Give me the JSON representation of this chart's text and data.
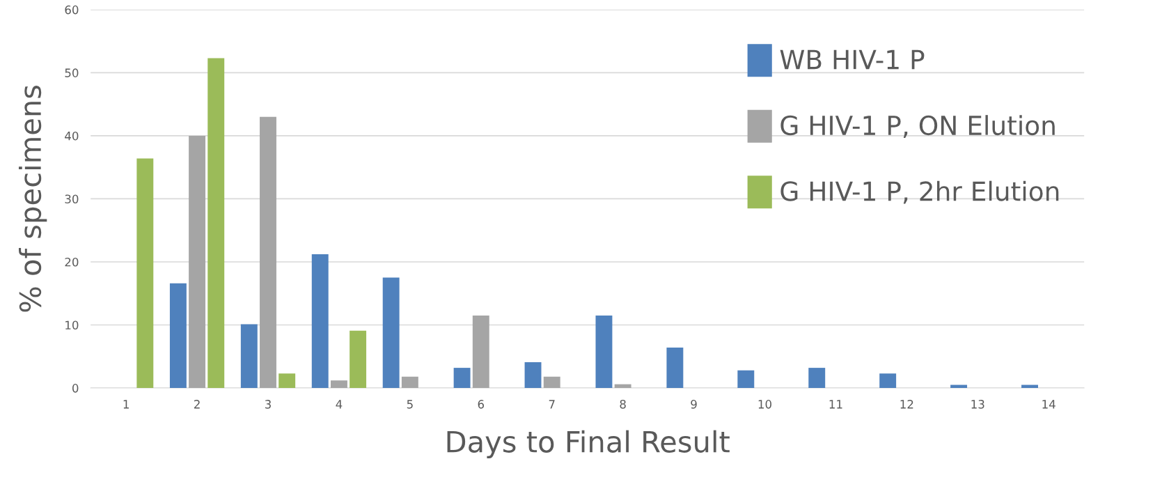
{
  "chart_data": {
    "type": "bar",
    "xlabel": "Days to Final Result",
    "ylabel": "% of specimens",
    "categories": [
      "1",
      "2",
      "3",
      "4",
      "5",
      "6",
      "7",
      "8",
      "9",
      "10",
      "11",
      "12",
      "13",
      "14"
    ],
    "series": [
      {
        "name": "WB HIV-1 P",
        "color": "#4f81bd",
        "values": [
          null,
          16.6,
          10.1,
          21.2,
          17.5,
          3.2,
          4.1,
          11.5,
          6.4,
          2.8,
          3.2,
          2.3,
          0.5,
          0.5
        ]
      },
      {
        "name": "G HIV-1 P, ON Elution",
        "color": "#a5a5a5",
        "values": [
          null,
          40,
          43,
          1.2,
          1.8,
          11.5,
          1.8,
          0.6,
          null,
          null,
          null,
          null,
          null,
          null
        ]
      },
      {
        "name": "G HIV-1 P, 2hr Elution",
        "color": "#9bbb59",
        "values": [
          36.4,
          52.3,
          2.3,
          9.1,
          null,
          null,
          null,
          null,
          null,
          null,
          null,
          null,
          null,
          null
        ]
      }
    ],
    "ylim": [
      0,
      60
    ],
    "yticks": [
      0,
      10,
      20,
      30,
      40,
      50,
      60
    ],
    "grid": "y",
    "legend": "top right"
  }
}
